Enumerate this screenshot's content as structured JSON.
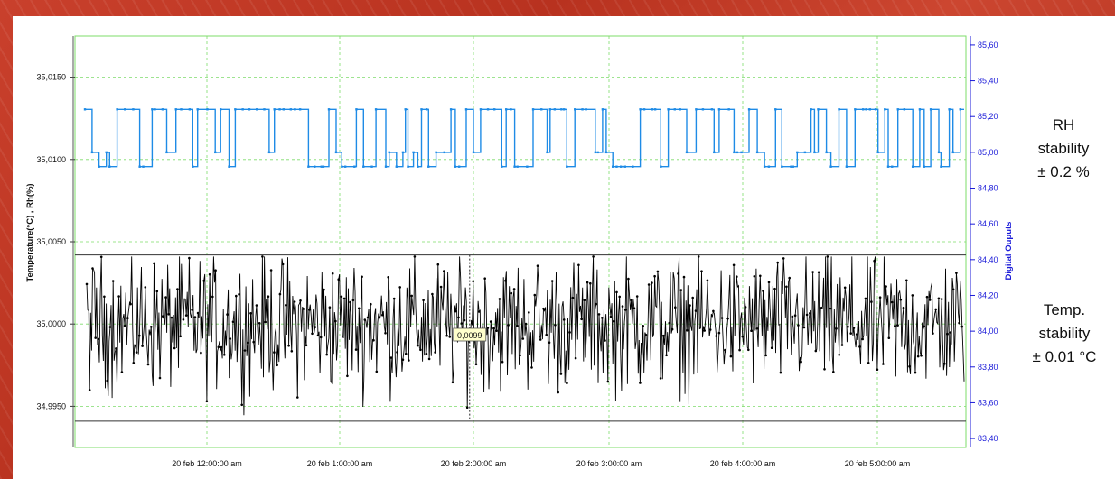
{
  "chart_data": {
    "type": "line",
    "ylabel": "Temperature(°C) , Rh(%)",
    "y2label": "Digital Ouputs",
    "ylim": [
      34.9925,
      35.0175
    ],
    "y2lim": [
      83.35,
      85.65
    ],
    "yticks": [
      "35,0150",
      "35,0100",
      "35,0050",
      "35,0000",
      "34,9950"
    ],
    "y2ticks": [
      "85,60",
      "85,40",
      "85,20",
      "85,00",
      "84,80",
      "84,60",
      "84,40",
      "84,20",
      "84,00",
      "83,80",
      "83,60",
      "83,40"
    ],
    "xticks": [
      "20 feb 12:00:00 am",
      "20 feb 1:00:00 am",
      "20 feb 2:00:00 am",
      "20 feb 3:00:00 am",
      "20 feb 4:00:00 am",
      "20 feb 5:00:00 am"
    ],
    "x_start_label": "20 feb 11:24:00 pm",
    "x_end_label": "20 feb 5:44:00 am",
    "grid": true,
    "series": [
      {
        "name": "Temperature",
        "axis": "left",
        "color": "#000000",
        "baseline": 35.0,
        "amplitude": 0.0045,
        "min": 34.9942,
        "max": 35.0041,
        "points": 1800
      },
      {
        "name": "RH",
        "axis": "right",
        "color": "#1e8be6",
        "low": 84.92,
        "high": 85.24,
        "mid": 85.0,
        "points": 520
      }
    ],
    "reference_lines": [
      {
        "axis": "left",
        "value": 35.0042,
        "color": "#333333"
      },
      {
        "axis": "left",
        "value": 34.9941,
        "color": "#333333"
      }
    ],
    "cursor": {
      "x_fraction": 0.443,
      "label": "0,0099"
    }
  },
  "annotations": {
    "rh": [
      "RH",
      "stability",
      "± 0.2 %"
    ],
    "temp": [
      "Temp.",
      "stability",
      "± 0.01 °C"
    ]
  },
  "colors": {
    "grid": "#7ddc6a",
    "right_axis": "#1a1ad8",
    "rh_series": "#1e8be6",
    "temp_series": "#000000",
    "frame": "#c43b27"
  }
}
